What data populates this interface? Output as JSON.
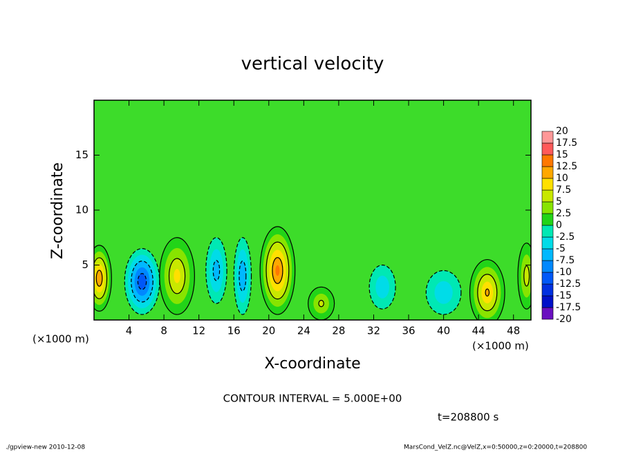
{
  "chart_data": {
    "type": "contour",
    "title": "vertical velocity",
    "x_label": "X-coordinate",
    "y_label": "Z-coordinate",
    "x_unit_left": "(×1000 m)",
    "x_unit_right": "(×1000 m)",
    "contour_note": "CONTOUR INTERVAL = 5.000E+00",
    "time_label": "t=208800 s",
    "footer_left": "./gpview-new  2010-12-08",
    "footer_right": "MarsCond_VelZ.nc@VelZ,x=0:50000,z=0:20000,t=208800",
    "xlim": [
      0,
      50
    ],
    "ylim": [
      0,
      20
    ],
    "xticks": [
      4,
      8,
      12,
      16,
      20,
      24,
      28,
      32,
      36,
      40,
      44,
      48
    ],
    "yticks": [
      5,
      10,
      15
    ],
    "background_color": "#3ddc2a",
    "colorbar": {
      "levels": [
        -20,
        -17.5,
        -15,
        -12.5,
        -10,
        -7.5,
        -5,
        -2.5,
        0,
        2.5,
        5,
        7.5,
        10,
        12.5,
        15,
        17.5,
        20
      ],
      "colors": [
        "#6a10c0",
        "#0010c8",
        "#0030e0",
        "#0058f8",
        "#0088ff",
        "#00b8ff",
        "#00dce8",
        "#00e8b4",
        "#22d418",
        "#88e400",
        "#c8e800",
        "#ffe000",
        "#ffa800",
        "#ff7800",
        "#ff5a5a",
        "#ff9898"
      ]
    },
    "features": [
      {
        "x": 0.6,
        "z": 3.8,
        "value": 12,
        "rx": 1.4,
        "rz": 3
      },
      {
        "x": 5.5,
        "z": 3.5,
        "value": -12,
        "rx": 2,
        "rz": 3
      },
      {
        "x": 9.5,
        "z": 4,
        "value": 8,
        "rx": 2,
        "rz": 3.5
      },
      {
        "x": 14,
        "z": 4.5,
        "value": -6,
        "rx": 1.2,
        "rz": 3
      },
      {
        "x": 17,
        "z": 4,
        "value": -7,
        "rx": 1,
        "rz": 3.5
      },
      {
        "x": 21,
        "z": 4.5,
        "value": 13,
        "rx": 2,
        "rz": 4
      },
      {
        "x": 26,
        "z": 1.5,
        "value": 5,
        "rx": 1.5,
        "rz": 1.5
      },
      {
        "x": 33,
        "z": 3,
        "value": -4,
        "rx": 1.5,
        "rz": 2
      },
      {
        "x": 40,
        "z": 2.5,
        "value": -4,
        "rx": 2,
        "rz": 2
      },
      {
        "x": 45,
        "z": 2.5,
        "value": 10,
        "rx": 2,
        "rz": 3
      },
      {
        "x": 49.5,
        "z": 4,
        "value": 6,
        "rx": 1,
        "rz": 3
      }
    ]
  }
}
